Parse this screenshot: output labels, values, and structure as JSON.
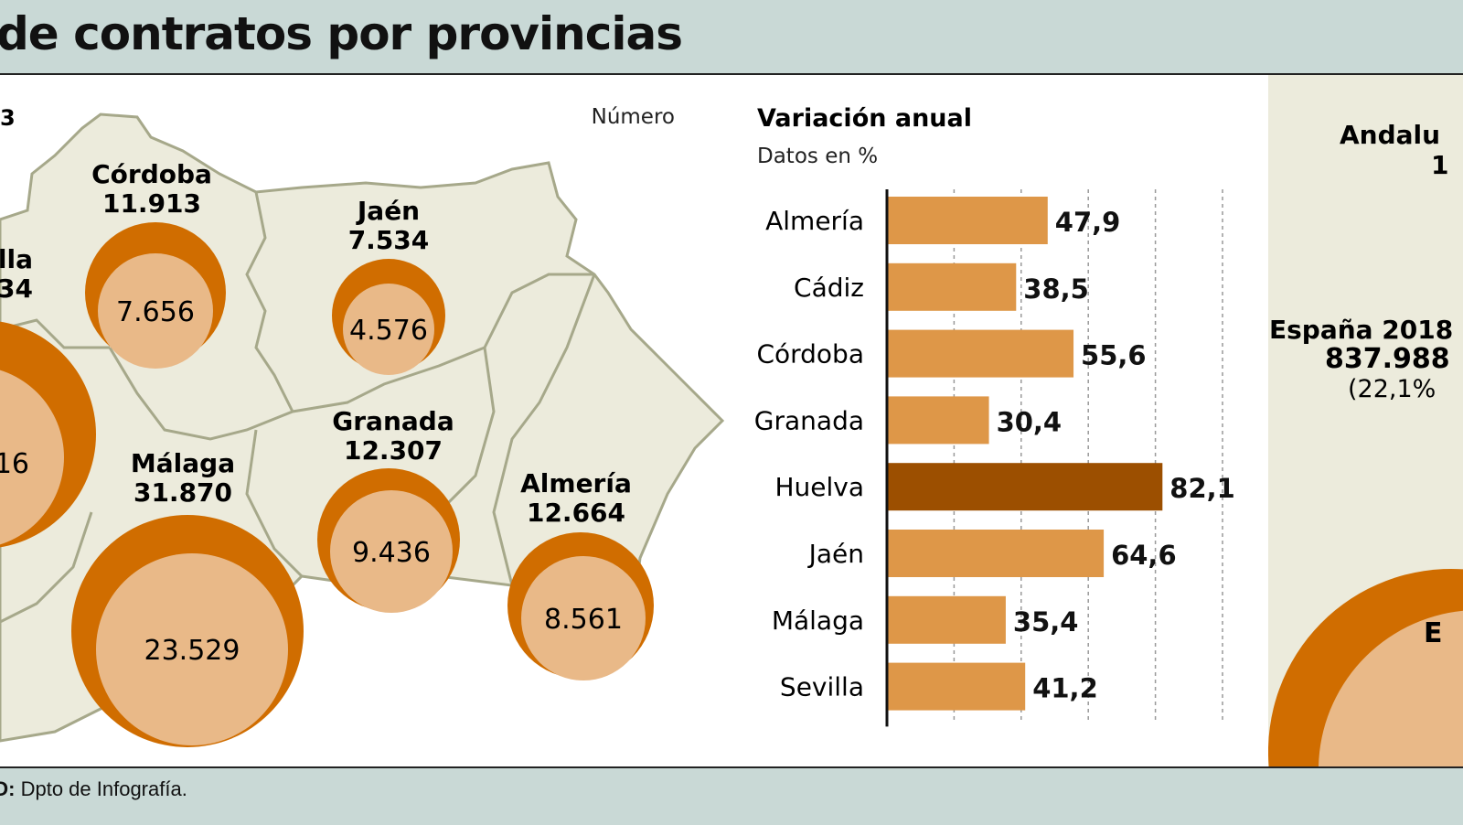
{
  "header": {
    "title": "de contratos por provincias"
  },
  "map": {
    "corner_label": "3",
    "unit_label": "Número",
    "provinces": [
      {
        "name": "lla",
        "total": "34",
        "inner": "16"
      },
      {
        "name": "Córdoba",
        "total": "11.913",
        "inner": "7.656"
      },
      {
        "name": "Jaén",
        "total": "7.534",
        "inner": "4.576"
      },
      {
        "name": "Granada",
        "total": "12.307",
        "inner": "9.436"
      },
      {
        "name": "Málaga",
        "total": "31.870",
        "inner": "23.529"
      },
      {
        "name": "Almería",
        "total": "12.664",
        "inner": "8.561"
      }
    ],
    "colors": {
      "land": "#ecebdc",
      "border": "#a6a88a",
      "outer_circle": "#d06d00",
      "inner_circle": "#e9b988"
    }
  },
  "right_panel": {
    "andalucia_label": "Andalu",
    "andalucia_value": "1",
    "spain_label": "España 2018",
    "spain_value": "837.988",
    "spain_pct": "(22,1%",
    "circle_label": "E"
  },
  "chart_data": {
    "type": "bar",
    "orientation": "horizontal",
    "title": "Variación anual",
    "subtitle": "Datos en %",
    "categories": [
      "Almería",
      "Cádiz",
      "Córdoba",
      "Granada",
      "Huelva",
      "Jaén",
      "Málaga",
      "Sevilla"
    ],
    "values": [
      47.9,
      38.5,
      55.6,
      30.4,
      82.1,
      64.6,
      35.4,
      41.2
    ],
    "value_labels": [
      "47,9",
      "38,5",
      "55,6",
      "30,4",
      "82,1",
      "64,6",
      "35,4",
      "41,2"
    ],
    "highlight": "Huelva",
    "xlim": [
      0,
      100
    ],
    "grid": true,
    "colors": {
      "bar": "#de9748",
      "highlight": "#9c4f00"
    }
  },
  "footer": {
    "source_label": "O:",
    "source_text": "Dpto de Infografía."
  }
}
